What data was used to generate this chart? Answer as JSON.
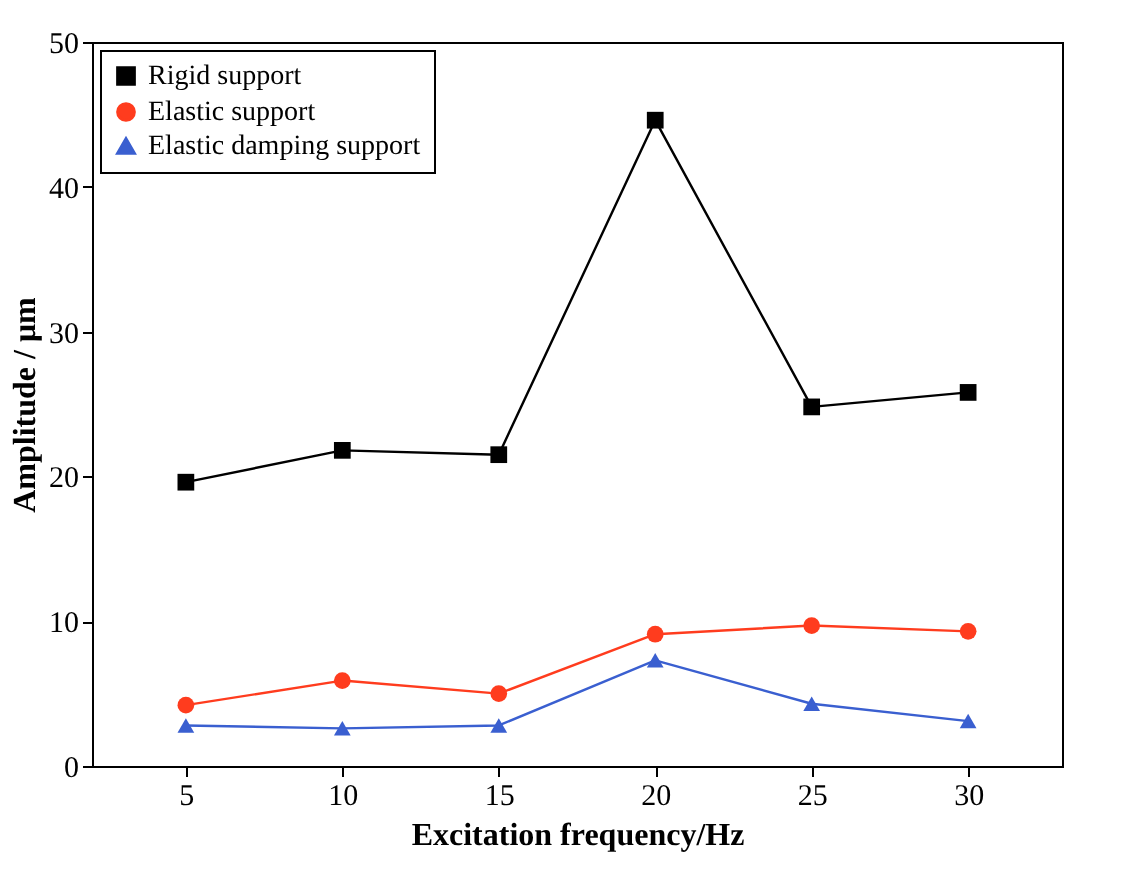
{
  "chart_data": {
    "type": "line",
    "xlabel": "Excitation frequency/Hz",
    "ylabel": "Amplitude / μm",
    "x": [
      5,
      10,
      15,
      20,
      25,
      30
    ],
    "series": [
      {
        "name": "Rigid support",
        "color": "#000000",
        "marker": "square",
        "values": [
          19.6,
          21.8,
          21.5,
          44.6,
          24.8,
          25.8
        ]
      },
      {
        "name": "Elastic support",
        "color": "#ff3c1e",
        "marker": "circle",
        "values": [
          4.2,
          5.9,
          5.0,
          9.1,
          9.7,
          9.3
        ]
      },
      {
        "name": "Elastic damping support",
        "color": "#3a5fd0",
        "marker": "triangle",
        "values": [
          2.8,
          2.6,
          2.8,
          7.3,
          4.3,
          3.1
        ]
      }
    ],
    "xlim": [
      2,
      33
    ],
    "xticks": [
      5,
      10,
      15,
      20,
      25,
      30
    ],
    "ylim": [
      0,
      50
    ],
    "yticks": [
      0,
      10,
      20,
      30,
      40,
      50
    ],
    "legend": "top left"
  }
}
